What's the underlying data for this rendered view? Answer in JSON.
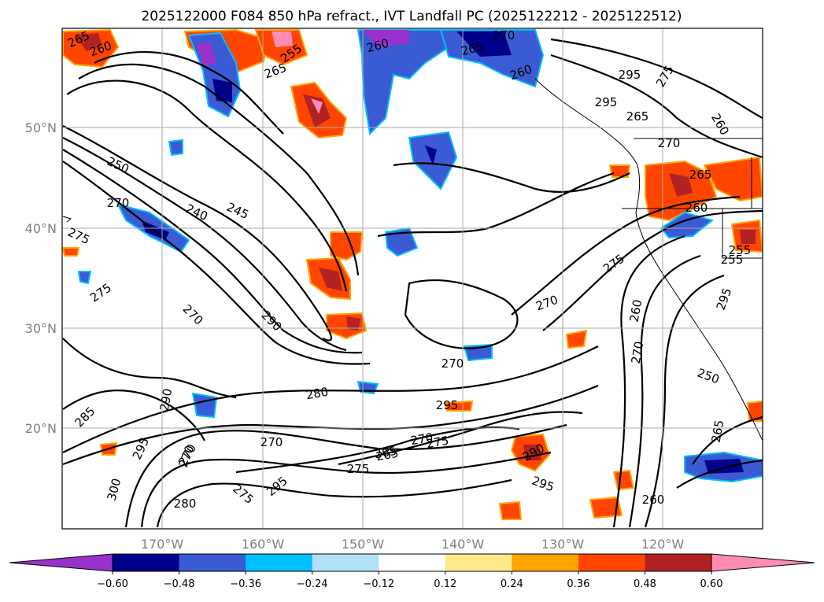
{
  "title": "2025122000 F084 850 hPa refract., IVT Landfall PC (2025122212 - 2025122512)",
  "map": {
    "lon_labels": [
      "170°W",
      "160°W",
      "150°W",
      "140°W",
      "130°W",
      "120°W"
    ],
    "lat_labels": [
      "50°N",
      "40°N",
      "30°N",
      "20°N"
    ],
    "contour_labels": [
      "265",
      "260",
      "255",
      "265",
      "260",
      "250",
      "245",
      "240",
      "270",
      "275",
      "260",
      "265",
      "265",
      "270",
      "275",
      "260",
      "265",
      "260",
      "270",
      "275",
      "275",
      "270",
      "290",
      "255",
      "295",
      "260",
      "270",
      "270",
      "280",
      "295",
      "270",
      "265",
      "270",
      "275",
      "290",
      "295",
      "260",
      "270",
      "250",
      "265",
      "295",
      "295",
      "290",
      "285",
      "300",
      "270",
      "290",
      "295",
      "295",
      "280",
      "270",
      "275",
      "275",
      "265",
      "255"
    ]
  },
  "colorbar": {
    "tick_labels": [
      "−0.60",
      "−0.48",
      "−0.36",
      "−0.24",
      "−0.12",
      "0.12",
      "0.24",
      "0.36",
      "0.48",
      "0.60"
    ],
    "colors": [
      "#9932cc",
      "#00008b",
      "#3a5bd4",
      "#00bfff",
      "#b0e0f8",
      "#ffffff",
      "#ffe98a",
      "#ffa500",
      "#ff4500",
      "#b22222",
      "#ff8cb4"
    ]
  }
}
